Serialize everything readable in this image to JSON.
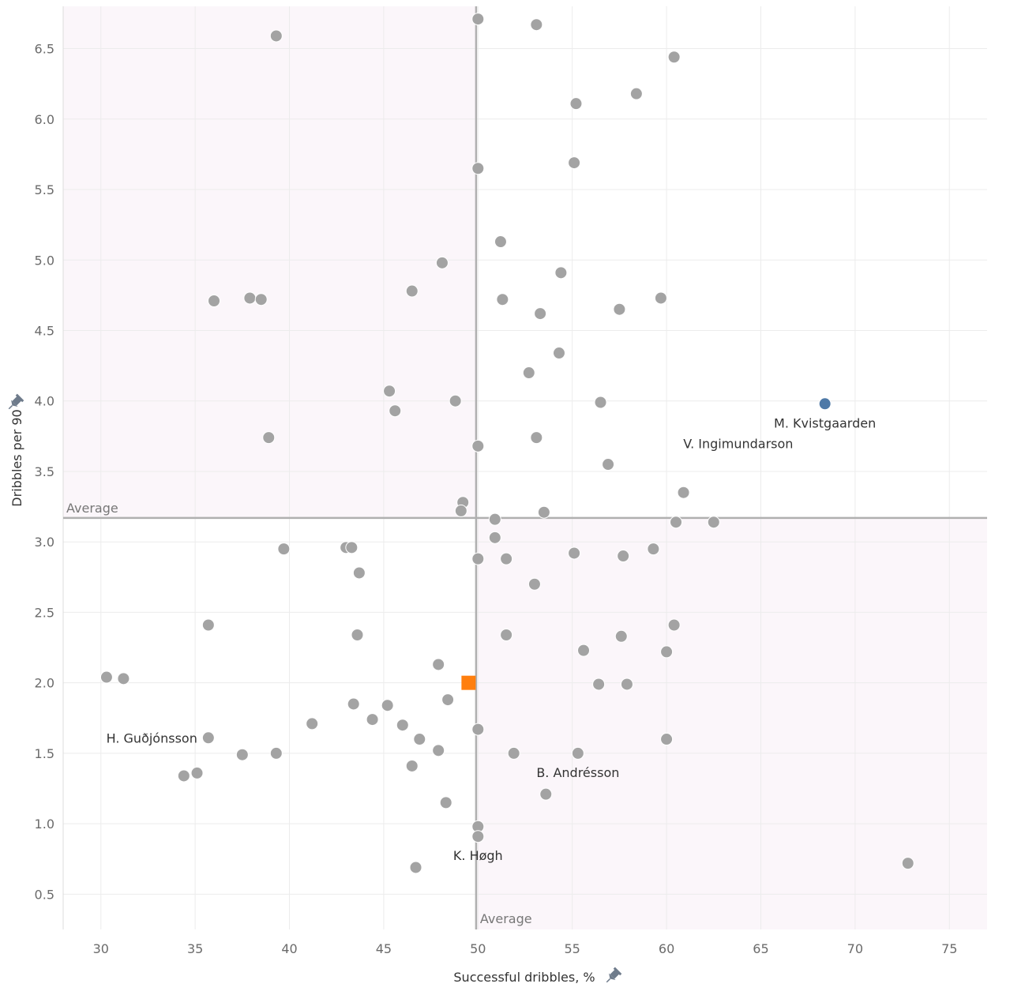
{
  "chart_data": {
    "type": "scatter",
    "xlabel": "Successful dribbles, %",
    "ylabel": "Dribbles per 90",
    "xlim": [
      28,
      77
    ],
    "ylim": [
      0.25,
      6.8
    ],
    "xticks": [
      "30",
      "35",
      "40",
      "45",
      "50",
      "55",
      "60",
      "65",
      "70",
      "75"
    ],
    "yticks": [
      "0.5",
      "1.0",
      "1.5",
      "2.0",
      "2.5",
      "3.0",
      "3.5",
      "4.0",
      "4.5",
      "5.0",
      "5.5",
      "6.0",
      "6.5"
    ],
    "grid": true,
    "average": {
      "x": 49.9,
      "y": 3.17,
      "x_label": "Average",
      "y_label": "Average"
    },
    "colors": {
      "points": "#a3a3a3",
      "highlight": "#4e79a7",
      "reference": "#ff7f0e",
      "shade": "#fbf6fa",
      "average_line": "#b0b0b0"
    },
    "points": [
      {
        "x": 50.0,
        "y": 6.71
      },
      {
        "x": 53.1,
        "y": 6.67
      },
      {
        "x": 39.3,
        "y": 6.59
      },
      {
        "x": 60.4,
        "y": 6.44
      },
      {
        "x": 58.4,
        "y": 6.18
      },
      {
        "x": 55.2,
        "y": 6.11
      },
      {
        "x": 50.0,
        "y": 5.65
      },
      {
        "x": 55.1,
        "y": 5.69
      },
      {
        "x": 51.2,
        "y": 5.13
      },
      {
        "x": 48.1,
        "y": 4.98
      },
      {
        "x": 54.4,
        "y": 4.91
      },
      {
        "x": 46.5,
        "y": 4.78
      },
      {
        "x": 36.0,
        "y": 4.71
      },
      {
        "x": 37.9,
        "y": 4.73
      },
      {
        "x": 38.5,
        "y": 4.72
      },
      {
        "x": 51.3,
        "y": 4.72
      },
      {
        "x": 59.7,
        "y": 4.73
      },
      {
        "x": 57.5,
        "y": 4.65
      },
      {
        "x": 53.3,
        "y": 4.62
      },
      {
        "x": 54.3,
        "y": 4.34
      },
      {
        "x": 52.7,
        "y": 4.2
      },
      {
        "x": 45.3,
        "y": 4.07
      },
      {
        "x": 45.6,
        "y": 3.93
      },
      {
        "x": 48.8,
        "y": 4.0
      },
      {
        "x": 56.5,
        "y": 3.99
      },
      {
        "x": 38.9,
        "y": 3.74
      },
      {
        "x": 50.0,
        "y": 3.68
      },
      {
        "x": 53.1,
        "y": 3.74
      },
      {
        "x": 56.9,
        "y": 3.55
      },
      {
        "x": 60.9,
        "y": 3.35
      },
      {
        "x": 49.2,
        "y": 3.28
      },
      {
        "x": 49.1,
        "y": 3.22
      },
      {
        "x": 53.5,
        "y": 3.21
      },
      {
        "x": 50.9,
        "y": 3.16
      },
      {
        "x": 60.5,
        "y": 3.14
      },
      {
        "x": 62.5,
        "y": 3.14
      },
      {
        "x": 50.9,
        "y": 3.03
      },
      {
        "x": 39.7,
        "y": 2.95
      },
      {
        "x": 43.0,
        "y": 2.96
      },
      {
        "x": 43.3,
        "y": 2.96
      },
      {
        "x": 59.3,
        "y": 2.95
      },
      {
        "x": 55.1,
        "y": 2.92
      },
      {
        "x": 57.7,
        "y": 2.9
      },
      {
        "x": 50.0,
        "y": 2.88
      },
      {
        "x": 51.5,
        "y": 2.88
      },
      {
        "x": 43.7,
        "y": 2.78
      },
      {
        "x": 53.0,
        "y": 2.7
      },
      {
        "x": 35.7,
        "y": 2.41
      },
      {
        "x": 60.4,
        "y": 2.41
      },
      {
        "x": 43.6,
        "y": 2.34
      },
      {
        "x": 51.5,
        "y": 2.34
      },
      {
        "x": 57.6,
        "y": 2.33
      },
      {
        "x": 55.6,
        "y": 2.23
      },
      {
        "x": 60.0,
        "y": 2.22
      },
      {
        "x": 47.9,
        "y": 2.13
      },
      {
        "x": 30.3,
        "y": 2.04
      },
      {
        "x": 31.2,
        "y": 2.03
      },
      {
        "x": 56.4,
        "y": 1.99
      },
      {
        "x": 57.9,
        "y": 1.99
      },
      {
        "x": 48.4,
        "y": 1.88
      },
      {
        "x": 43.4,
        "y": 1.85
      },
      {
        "x": 45.2,
        "y": 1.84
      },
      {
        "x": 44.4,
        "y": 1.74
      },
      {
        "x": 41.2,
        "y": 1.71
      },
      {
        "x": 46.0,
        "y": 1.7
      },
      {
        "x": 50.0,
        "y": 1.67
      },
      {
        "x": 35.7,
        "y": 1.61
      },
      {
        "x": 46.9,
        "y": 1.6
      },
      {
        "x": 60.0,
        "y": 1.6
      },
      {
        "x": 47.9,
        "y": 1.52
      },
      {
        "x": 51.9,
        "y": 1.5
      },
      {
        "x": 55.3,
        "y": 1.5
      },
      {
        "x": 37.5,
        "y": 1.49
      },
      {
        "x": 39.3,
        "y": 1.5
      },
      {
        "x": 46.5,
        "y": 1.41
      },
      {
        "x": 34.4,
        "y": 1.34
      },
      {
        "x": 35.1,
        "y": 1.36
      },
      {
        "x": 53.6,
        "y": 1.21
      },
      {
        "x": 48.3,
        "y": 1.15
      },
      {
        "x": 50.0,
        "y": 0.98
      },
      {
        "x": 50.0,
        "y": 0.91
      },
      {
        "x": 46.7,
        "y": 0.69
      },
      {
        "x": 72.8,
        "y": 0.72
      }
    ],
    "highlight": {
      "x": 68.4,
      "y": 3.98
    },
    "reference": {
      "x": 49.5,
      "y": 2.0
    },
    "labels": [
      {
        "text": "M. Kvistgaarden",
        "x": 68.4,
        "y": 3.98,
        "anchor": "middle",
        "dx": 0,
        "dy": 30
      },
      {
        "text": "V. Ingimundarson",
        "x": 60.3,
        "y": 3.7,
        "anchor": "start",
        "dx": 14,
        "dy": 6
      },
      {
        "text": "H. Guðjónsson",
        "x": 35.7,
        "y": 1.61,
        "anchor": "end",
        "dx": -14,
        "dy": 6
      },
      {
        "text": "B. Andrésson",
        "x": 55.3,
        "y": 1.5,
        "anchor": "middle",
        "dx": 0,
        "dy": 30
      },
      {
        "text": "K. Høgh",
        "x": 50.0,
        "y": 0.91,
        "anchor": "middle",
        "dx": 0,
        "dy": 30
      }
    ]
  }
}
